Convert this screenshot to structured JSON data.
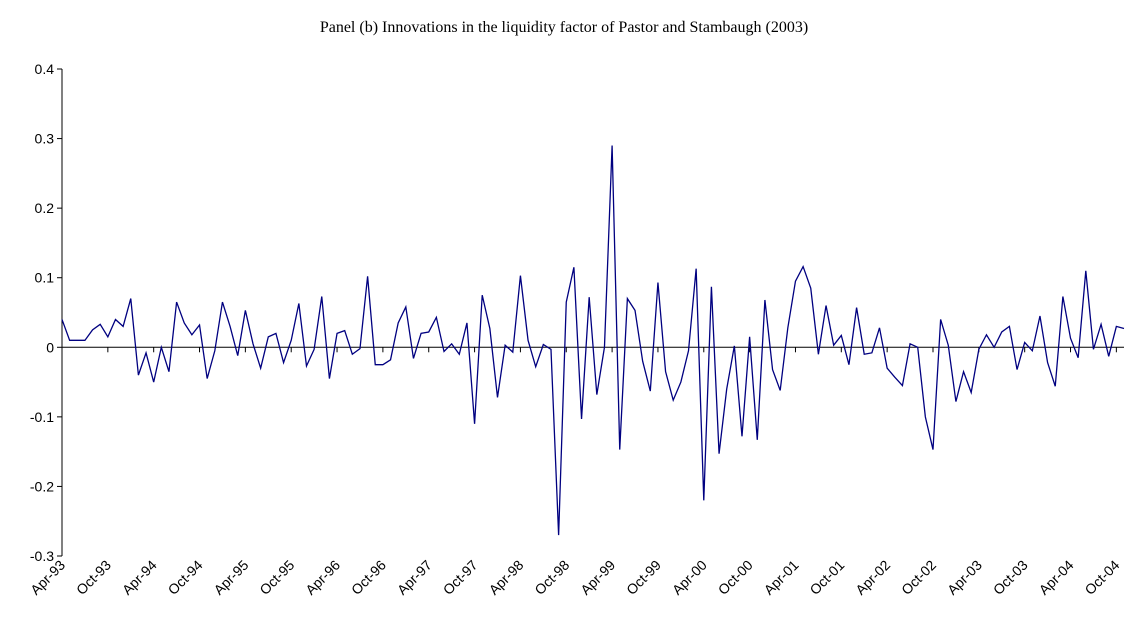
{
  "chart_data": {
    "type": "line",
    "title": "Panel (b) Innovations in the liquidity factor of Pastor and Stambaugh (2003)",
    "categories": [
      "Apr-93",
      null,
      null,
      null,
      null,
      null,
      "Oct-93",
      null,
      null,
      null,
      null,
      null,
      "Apr-94",
      null,
      null,
      null,
      null,
      null,
      "Oct-94",
      null,
      null,
      null,
      null,
      null,
      "Apr-95",
      null,
      null,
      null,
      null,
      null,
      "Oct-95",
      null,
      null,
      null,
      null,
      null,
      "Apr-96",
      null,
      null,
      null,
      null,
      null,
      "Oct-96",
      null,
      null,
      null,
      null,
      null,
      "Apr-97",
      null,
      null,
      null,
      null,
      null,
      "Oct-97",
      null,
      null,
      null,
      null,
      null,
      "Apr-98",
      null,
      null,
      null,
      null,
      null,
      "Oct-98",
      null,
      null,
      null,
      null,
      null,
      "Apr-99",
      null,
      null,
      null,
      null,
      null,
      "Oct-99",
      null,
      null,
      null,
      null,
      null,
      "Apr-00",
      null,
      null,
      null,
      null,
      null,
      "Oct-00",
      null,
      null,
      null,
      null,
      null,
      "Apr-01",
      null,
      null,
      null,
      null,
      null,
      "Oct-01",
      null,
      null,
      null,
      null,
      null,
      "Apr-02",
      null,
      null,
      null,
      null,
      null,
      "Oct-02",
      null,
      null,
      null,
      null,
      null,
      "Apr-03",
      null,
      null,
      null,
      null,
      null,
      "Oct-03",
      null,
      null,
      null,
      null,
      null,
      "Apr-04",
      null,
      null,
      null,
      null,
      null,
      "Oct-04",
      null
    ],
    "series": [
      {
        "color": "#000080",
        "values": [
          0.04,
          0.01,
          0.01,
          0.01,
          0.025,
          0.033,
          0.015,
          0.04,
          0.03,
          0.07,
          -0.04,
          -0.008,
          -0.05,
          0.0,
          -0.035,
          0.065,
          0.035,
          0.018,
          0.032,
          -0.045,
          -0.005,
          0.065,
          0.03,
          -0.012,
          0.053,
          0.005,
          -0.03,
          0.015,
          0.02,
          -0.022,
          0.01,
          0.063,
          -0.027,
          -0.003,
          0.073,
          -0.045,
          0.02,
          0.024,
          -0.01,
          -0.002,
          0.102,
          -0.025,
          -0.025,
          -0.018,
          0.035,
          0.058,
          -0.016,
          0.02,
          0.022,
          0.043,
          -0.006,
          0.005,
          -0.01,
          0.035,
          -0.11,
          0.075,
          0.027,
          -0.072,
          0.003,
          -0.007,
          0.103,
          0.01,
          -0.028,
          0.004,
          -0.003,
          -0.27,
          0.065,
          0.115,
          -0.103,
          0.072,
          -0.068,
          0.0,
          0.29,
          -0.147,
          0.07,
          0.053,
          -0.02,
          -0.063,
          0.093,
          -0.035,
          -0.076,
          -0.05,
          -0.005,
          0.113,
          -0.22,
          0.087,
          -0.153,
          -0.06,
          0.002,
          -0.128,
          0.015,
          -0.133,
          0.068,
          -0.032,
          -0.062,
          0.028,
          0.095,
          0.116,
          0.085,
          -0.01,
          0.06,
          0.003,
          0.017,
          -0.025,
          0.057,
          -0.01,
          -0.008,
          0.028,
          -0.03,
          -0.043,
          -0.055,
          0.005,
          0.0,
          -0.1,
          -0.147,
          0.04,
          0.003,
          -0.078,
          -0.035,
          -0.065,
          -0.003,
          0.018,
          0.0,
          0.022,
          0.03,
          -0.032,
          0.007,
          -0.005,
          0.045,
          -0.022,
          -0.056,
          0.073,
          0.013,
          -0.015,
          0.11,
          -0.003,
          0.033,
          -0.013,
          0.03,
          0.027
        ]
      }
    ],
    "ylim": [
      -0.3,
      0.4
    ],
    "yticks": [
      -0.3,
      -0.2,
      -0.1,
      0,
      0.1,
      0.2,
      0.3,
      0.4
    ],
    "grid": false
  }
}
